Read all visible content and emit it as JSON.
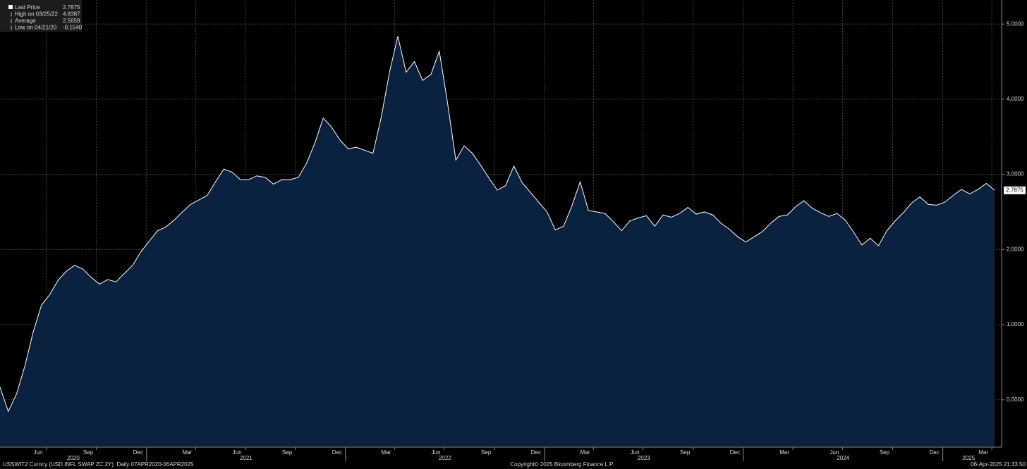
{
  "chart_data": {
    "type": "area",
    "series": [
      {
        "name": "Last Price",
        "color": "#ffffff",
        "fill": "#0b2140",
        "values": [
          0.17,
          -0.154,
          0.08,
          0.45,
          0.9,
          1.26,
          1.4,
          1.59,
          1.71,
          1.79,
          1.74,
          1.63,
          1.54,
          1.6,
          1.57,
          1.68,
          1.79,
          1.97,
          2.11,
          2.25,
          2.3,
          2.39,
          2.5,
          2.6,
          2.66,
          2.72,
          2.9,
          3.07,
          3.03,
          2.93,
          2.93,
          2.98,
          2.96,
          2.87,
          2.93,
          2.93,
          2.96,
          3.15,
          3.42,
          3.75,
          3.63,
          3.46,
          3.34,
          3.36,
          3.32,
          3.28,
          3.76,
          4.36,
          4.8387,
          4.36,
          4.5,
          4.25,
          4.33,
          4.64,
          3.95,
          3.19,
          3.38,
          3.28,
          3.12,
          2.95,
          2.79,
          2.85,
          3.11,
          2.89,
          2.76,
          2.63,
          2.5,
          2.26,
          2.31,
          2.58,
          2.9,
          2.52,
          2.5,
          2.48,
          2.37,
          2.25,
          2.38,
          2.42,
          2.45,
          2.31,
          2.46,
          2.43,
          2.48,
          2.56,
          2.47,
          2.5,
          2.46,
          2.35,
          2.27,
          2.17,
          2.1,
          2.17,
          2.24,
          2.35,
          2.44,
          2.46,
          2.57,
          2.65,
          2.55,
          2.49,
          2.44,
          2.48,
          2.39,
          2.23,
          2.06,
          2.15,
          2.05,
          2.25,
          2.38,
          2.49,
          2.62,
          2.7,
          2.6,
          2.59,
          2.63,
          2.72,
          2.8,
          2.74,
          2.8,
          2.88,
          2.7875
        ]
      }
    ],
    "xlim": [
      "2020-04-07",
      "2025-04-06"
    ],
    "ylim": [
      -0.63,
      5.32
    ],
    "yticks": [
      {
        "value": 0,
        "label": "0.0000"
      },
      {
        "value": 1,
        "label": "1.0000"
      },
      {
        "value": 2,
        "label": "2.0000"
      },
      {
        "value": 3,
        "label": "3.0000"
      },
      {
        "value": 4,
        "label": "4.0000"
      },
      {
        "value": 5,
        "label": "5.0000"
      }
    ],
    "xticks": [
      {
        "value": "2020-06",
        "label": "Jun"
      },
      {
        "value": "2020-09",
        "label": "Sep"
      },
      {
        "value": "2020-12",
        "label": "Dec"
      },
      {
        "value": "2021-03",
        "label": "Mar"
      },
      {
        "value": "2021-06",
        "label": "Jun"
      },
      {
        "value": "2021-09",
        "label": "Sep"
      },
      {
        "value": "2021-12",
        "label": "Dec"
      },
      {
        "value": "2022-03",
        "label": "Mar"
      },
      {
        "value": "2022-06",
        "label": "Jun"
      },
      {
        "value": "2022-09",
        "label": "Sep"
      },
      {
        "value": "2022-12",
        "label": "Dec"
      },
      {
        "value": "2023-03",
        "label": "Mar"
      },
      {
        "value": "2023-06",
        "label": "Jun"
      },
      {
        "value": "2023-09",
        "label": "Sep"
      },
      {
        "value": "2023-12",
        "label": "Dec"
      },
      {
        "value": "2024-03",
        "label": "Mar"
      },
      {
        "value": "2024-06",
        "label": "Jun"
      },
      {
        "value": "2024-09",
        "label": "Sep"
      },
      {
        "value": "2024-12",
        "label": "Dec"
      },
      {
        "value": "2025-03",
        "label": "Mar"
      }
    ],
    "year_ticks": [
      2020,
      2021,
      2022,
      2023,
      2024,
      2025
    ],
    "grid": true,
    "stats": [
      {
        "label": "Last Price",
        "value": 2.7875
      },
      {
        "label": "High on 03/25/22",
        "value": 4.8387
      },
      {
        "label": "Average",
        "value": 2.5659
      },
      {
        "label": "Low on 04/21/20",
        "value": -0.154,
        "value_label": "-0.1540"
      }
    ],
    "footer_left": "USSWIT2 Curncy (USD INFL SWAP ZC 2Y)  Daily 07APR2020-06APR2025",
    "footer_center": "Copyright© 2025 Bloomberg Finance L.P.",
    "footer_right": "06-Apr-2025 21:33:50"
  }
}
